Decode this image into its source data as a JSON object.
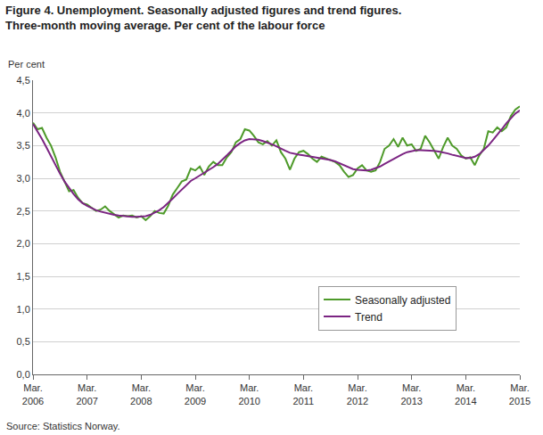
{
  "chart_data": {
    "type": "line",
    "title": "Figure 4. Unemployment. Seasonally adjusted figures and trend figures.",
    "subtitle": "Three-month moving average. Per cent of the labour force",
    "y_label": "Per cent",
    "source": "Source: Statistics Norway.",
    "categories": [
      "Mar. 2006",
      null,
      null,
      null,
      null,
      null,
      null,
      null,
      null,
      null,
      null,
      null,
      "Mar. 2007",
      null,
      null,
      null,
      null,
      null,
      null,
      null,
      null,
      null,
      null,
      null,
      "Mar. 2008",
      null,
      null,
      null,
      null,
      null,
      null,
      null,
      null,
      null,
      null,
      null,
      "Mar. 2009",
      null,
      null,
      null,
      null,
      null,
      null,
      null,
      null,
      null,
      null,
      null,
      "Mar. 2010",
      null,
      null,
      null,
      null,
      null,
      null,
      null,
      null,
      null,
      null,
      null,
      "Mar. 2011",
      null,
      null,
      null,
      null,
      null,
      null,
      null,
      null,
      null,
      null,
      null,
      "Mar. 2012",
      null,
      null,
      null,
      null,
      null,
      null,
      null,
      null,
      null,
      null,
      null,
      "Mar. 2013",
      null,
      null,
      null,
      null,
      null,
      null,
      null,
      null,
      null,
      null,
      null,
      "Mar. 2014",
      null,
      null,
      null,
      null,
      null,
      null,
      null,
      null,
      null,
      null,
      null,
      "Mar. 2015"
    ],
    "series": [
      {
        "name": "Seasonally adjusted",
        "color": "#4e9a2a",
        "values": [
          3.85,
          3.75,
          3.77,
          3.62,
          3.5,
          3.32,
          3.1,
          2.95,
          2.8,
          2.82,
          2.7,
          2.62,
          2.6,
          2.55,
          2.5,
          2.52,
          2.57,
          2.5,
          2.45,
          2.4,
          2.43,
          2.42,
          2.43,
          2.4,
          2.42,
          2.36,
          2.42,
          2.5,
          2.47,
          2.46,
          2.58,
          2.75,
          2.85,
          2.95,
          2.98,
          3.15,
          3.12,
          3.18,
          3.05,
          3.18,
          3.25,
          3.2,
          3.2,
          3.32,
          3.4,
          3.55,
          3.6,
          3.75,
          3.73,
          3.65,
          3.55,
          3.52,
          3.57,
          3.5,
          3.58,
          3.4,
          3.3,
          3.13,
          3.3,
          3.4,
          3.42,
          3.37,
          3.3,
          3.25,
          3.33,
          3.3,
          3.27,
          3.25,
          3.2,
          3.1,
          3.02,
          3.05,
          3.15,
          3.2,
          3.12,
          3.1,
          3.12,
          3.25,
          3.45,
          3.5,
          3.6,
          3.48,
          3.62,
          3.5,
          3.52,
          3.42,
          3.45,
          3.65,
          3.55,
          3.42,
          3.3,
          3.48,
          3.62,
          3.5,
          3.45,
          3.35,
          3.3,
          3.32,
          3.2,
          3.35,
          3.45,
          3.72,
          3.7,
          3.78,
          3.72,
          3.78,
          3.95,
          4.05,
          4.1
        ]
      },
      {
        "name": "Trend",
        "color": "#7b2482",
        "values": [
          3.83,
          3.72,
          3.6,
          3.47,
          3.33,
          3.2,
          3.07,
          2.95,
          2.85,
          2.76,
          2.68,
          2.62,
          2.58,
          2.54,
          2.51,
          2.49,
          2.47,
          2.46,
          2.44,
          2.43,
          2.42,
          2.41,
          2.41,
          2.41,
          2.41,
          2.42,
          2.44,
          2.47,
          2.51,
          2.56,
          2.62,
          2.69,
          2.76,
          2.83,
          2.9,
          2.96,
          3.0,
          3.04,
          3.08,
          3.12,
          3.17,
          3.22,
          3.28,
          3.35,
          3.42,
          3.49,
          3.54,
          3.58,
          3.6,
          3.6,
          3.59,
          3.57,
          3.55,
          3.52,
          3.49,
          3.45,
          3.42,
          3.39,
          3.37,
          3.36,
          3.35,
          3.34,
          3.33,
          3.32,
          3.31,
          3.3,
          3.28,
          3.26,
          3.23,
          3.2,
          3.17,
          3.14,
          3.13,
          3.12,
          3.12,
          3.13,
          3.15,
          3.18,
          3.22,
          3.26,
          3.3,
          3.34,
          3.37,
          3.4,
          3.42,
          3.43,
          3.43,
          3.43,
          3.43,
          3.42,
          3.41,
          3.4,
          3.38,
          3.36,
          3.34,
          3.32,
          3.31,
          3.31,
          3.33,
          3.37,
          3.43,
          3.5,
          3.58,
          3.66,
          3.75,
          3.84,
          3.92,
          3.99,
          4.04
        ]
      }
    ],
    "ylim": [
      0,
      4.5
    ],
    "yticks": [
      {
        "value": 0,
        "label": "0,0"
      },
      {
        "value": 0.5,
        "label": "0,5"
      },
      {
        "value": 1,
        "label": "1,0"
      },
      {
        "value": 1.5,
        "label": "1,5"
      },
      {
        "value": 2,
        "label": "2,0"
      },
      {
        "value": 2.5,
        "label": "2,5"
      },
      {
        "value": 3,
        "label": "3,0"
      },
      {
        "value": 3.5,
        "label": "3,5"
      },
      {
        "value": 4,
        "label": "4,0"
      },
      {
        "value": 4.5,
        "label": "4,5"
      }
    ],
    "grid": true,
    "legend": "lower right"
  }
}
